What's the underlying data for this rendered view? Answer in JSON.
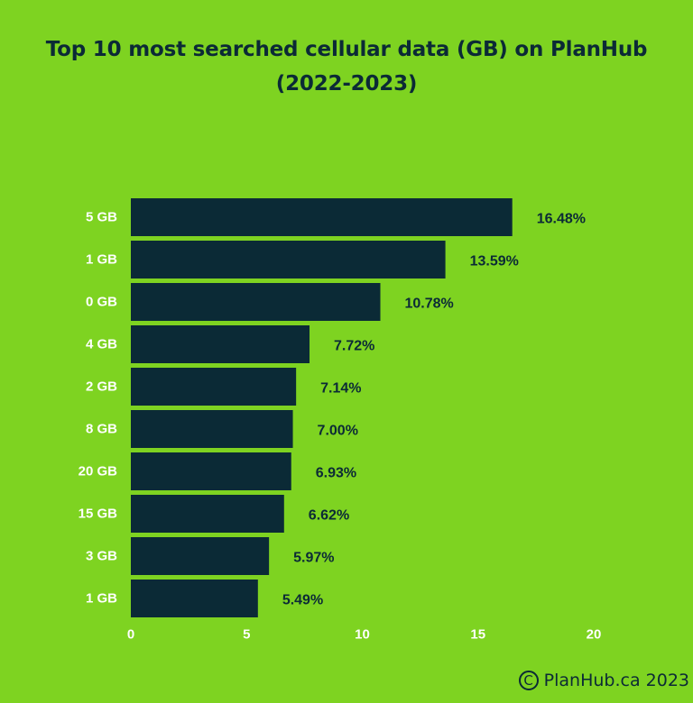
{
  "title": {
    "line1": "Top 10 most searched cellular data (GB) on PlanHub",
    "line2": "(2022-2023)"
  },
  "credit": {
    "symbol": "C",
    "text": "PlanHub.ca 2023"
  },
  "colors": {
    "background": "#7ed321",
    "bar": "#0b2a36",
    "category_label": "#ffffff",
    "value_label": "#0b2a36",
    "tick_label": "#ffffff"
  },
  "chart_data": {
    "type": "bar",
    "orientation": "horizontal",
    "title": "Top 10 most searched cellular data (GB) on PlanHub (2022-2023)",
    "categories": [
      "5 GB",
      "1 GB",
      "0 GB",
      "4 GB",
      "2 GB",
      "8 GB",
      "20 GB",
      "15 GB",
      "3 GB",
      "1 GB"
    ],
    "values": [
      16.48,
      13.59,
      10.78,
      7.72,
      7.14,
      7.0,
      6.93,
      6.62,
      5.97,
      5.49
    ],
    "data_labels": [
      "16.48%",
      "13.59%",
      "10.78%",
      "7.72%",
      "7.14%",
      "7.00%",
      "6.93%",
      "6.62%",
      "5.97%",
      "5.49%"
    ],
    "xlim": [
      0,
      20
    ],
    "xticks": [
      0,
      5,
      10,
      15,
      20
    ],
    "xlabel": "",
    "ylabel": "",
    "grid": false,
    "legend": "none"
  }
}
